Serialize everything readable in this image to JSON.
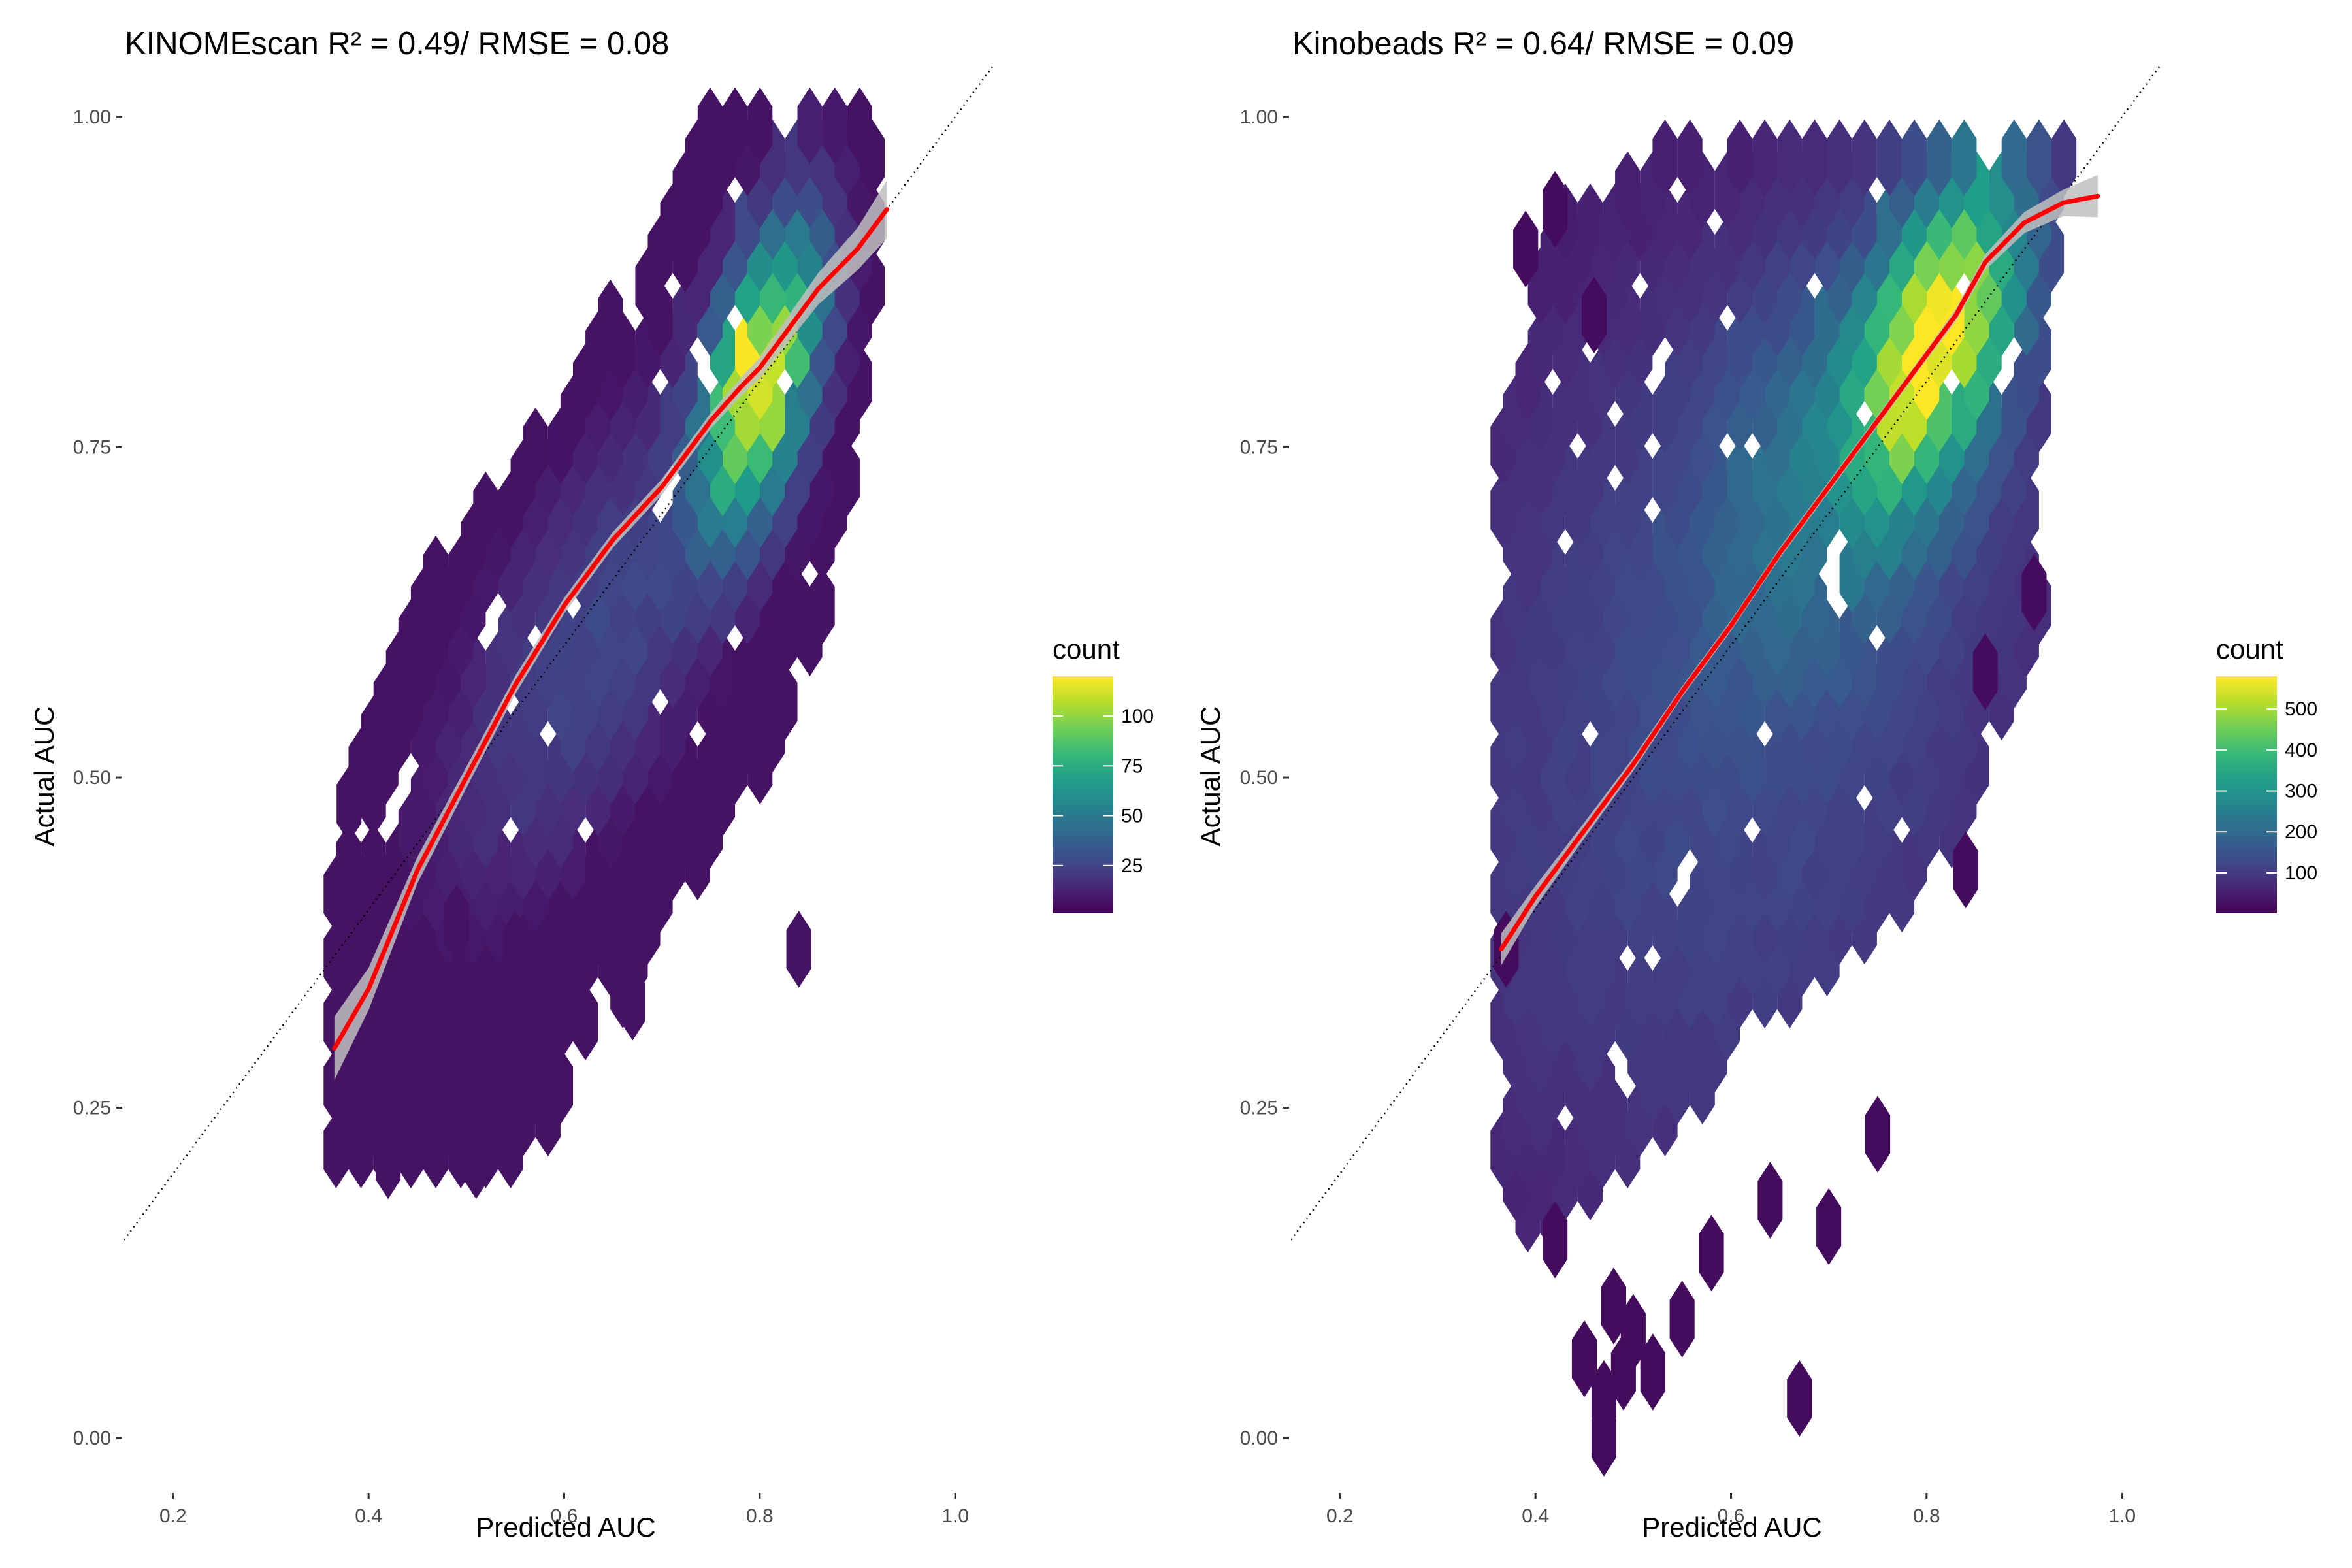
{
  "colors": {
    "viridis": [
      "#440154",
      "#482878",
      "#3e4a89",
      "#31688e",
      "#26828e",
      "#1f9e89",
      "#35b779",
      "#6ece58",
      "#b5de2b",
      "#fde725"
    ],
    "fit_line": "#ff0000",
    "confidence_band": "#bfbfbf",
    "identity_line": "#000000"
  },
  "chart_data": [
    {
      "type": "hexbin",
      "title": "KINOMEscan R² = 0.49/ RMSE = 0.08",
      "xlabel": "Predicted AUC",
      "ylabel": "Actual AUC",
      "xlim": [
        0.15,
        1.05
      ],
      "ylim": [
        -0.04,
        1.04
      ],
      "x_ticks": [
        0.2,
        0.4,
        0.6,
        0.8,
        1.0
      ],
      "x_tick_labels": [
        "0.2",
        "0.4",
        "0.6",
        "0.8",
        "1.0"
      ],
      "y_ticks": [
        0.0,
        0.25,
        0.5,
        0.75,
        1.0
      ],
      "y_tick_labels": [
        "0.00",
        "0.25",
        "0.50",
        "0.75",
        "1.00"
      ],
      "grid": false,
      "identity_line": true,
      "legend": {
        "title": "count",
        "placement": "right",
        "range": [
          1,
          120
        ],
        "ticks": [
          25,
          50,
          75,
          100
        ],
        "tick_labels": [
          "25",
          "50",
          "75",
          "100"
        ]
      },
      "density_clusters": [
        {
          "x": 0.8,
          "y": 0.81,
          "sx": 0.035,
          "sy": 0.065,
          "rho": 0.5,
          "peak": 120
        },
        {
          "x": 0.64,
          "y": 0.62,
          "sx": 0.1,
          "sy": 0.12,
          "rho": 0.7,
          "peak": 10
        }
      ],
      "occupied_region": [
        [
          0.36,
          0.2
        ],
        [
          0.55,
          0.2
        ],
        [
          0.86,
          0.58
        ],
        [
          0.92,
          0.85
        ],
        [
          0.92,
          1.0
        ],
        [
          0.75,
          1.0
        ],
        [
          0.6,
          0.78
        ],
        [
          0.45,
          0.64
        ],
        [
          0.36,
          0.44
        ]
      ],
      "outlier_points": [
        [
          0.42,
          0.21
        ],
        [
          0.51,
          0.21
        ],
        [
          0.67,
          0.33
        ],
        [
          0.84,
          0.37
        ],
        [
          0.55,
          0.37
        ],
        [
          0.49,
          0.39
        ],
        [
          0.38,
          0.48
        ]
      ],
      "fit_line": {
        "x": [
          0.365,
          0.4,
          0.45,
          0.5,
          0.55,
          0.6,
          0.65,
          0.7,
          0.75,
          0.78,
          0.8,
          0.83,
          0.86,
          0.9,
          0.93
        ],
        "y": [
          0.295,
          0.34,
          0.43,
          0.5,
          0.57,
          0.63,
          0.68,
          0.72,
          0.77,
          0.795,
          0.81,
          0.84,
          0.87,
          0.9,
          0.93
        ],
        "band": [
          0.024,
          0.016,
          0.01,
          0.008,
          0.007,
          0.006,
          0.006,
          0.006,
          0.006,
          0.007,
          0.008,
          0.01,
          0.012,
          0.016,
          0.022
        ]
      }
    },
    {
      "type": "hexbin",
      "title": "Kinobeads R² = 0.64/ RMSE = 0.09",
      "xlabel": "Predicted AUC",
      "ylabel": "Actual AUC",
      "xlim": [
        0.15,
        1.05
      ],
      "ylim": [
        -0.04,
        1.04
      ],
      "x_ticks": [
        0.2,
        0.4,
        0.6,
        0.8,
        1.0
      ],
      "x_tick_labels": [
        "0.2",
        "0.4",
        "0.6",
        "0.8",
        "1.0"
      ],
      "y_ticks": [
        0.0,
        0.25,
        0.5,
        0.75,
        1.0
      ],
      "y_tick_labels": [
        "0.00",
        "0.25",
        "0.50",
        "0.75",
        "1.00"
      ],
      "grid": false,
      "identity_line": true,
      "legend": {
        "title": "count",
        "placement": "right",
        "range": [
          1,
          580
        ],
        "ticks": [
          100,
          200,
          300,
          400,
          500
        ],
        "tick_labels": [
          "100",
          "200",
          "300",
          "400",
          "500"
        ]
      },
      "density_clusters": [
        {
          "x": 0.81,
          "y": 0.84,
          "sx": 0.05,
          "sy": 0.07,
          "rho": 0.5,
          "peak": 580
        },
        {
          "x": 0.72,
          "y": 0.75,
          "sx": 0.09,
          "sy": 0.1,
          "rho": 0.4,
          "peak": 120
        },
        {
          "x": 0.6,
          "y": 0.55,
          "sx": 0.2,
          "sy": 0.22,
          "rho": 0.2,
          "peak": 40
        }
      ],
      "occupied_region": [
        [
          0.36,
          0.22
        ],
        [
          0.4,
          0.15
        ],
        [
          0.65,
          0.32
        ],
        [
          0.85,
          0.46
        ],
        [
          0.92,
          0.6
        ],
        [
          0.92,
          0.86
        ],
        [
          0.96,
          0.98
        ],
        [
          0.55,
          0.98
        ],
        [
          0.42,
          0.92
        ],
        [
          0.36,
          0.75
        ]
      ],
      "outlier_points": [
        [
          0.42,
          0.15
        ],
        [
          0.48,
          0.1
        ],
        [
          0.5,
          0.08
        ],
        [
          0.45,
          0.06
        ],
        [
          0.47,
          0.03
        ],
        [
          0.49,
          0.05
        ],
        [
          0.52,
          0.05
        ],
        [
          0.47,
          0.0
        ],
        [
          0.55,
          0.09
        ],
        [
          0.58,
          0.14
        ],
        [
          0.67,
          0.03
        ],
        [
          0.64,
          0.18
        ],
        [
          0.7,
          0.16
        ],
        [
          0.75,
          0.23
        ],
        [
          0.84,
          0.43
        ],
        [
          0.91,
          0.64
        ],
        [
          0.86,
          0.58
        ],
        [
          0.37,
          0.37
        ],
        [
          0.46,
          0.85
        ],
        [
          0.42,
          0.93
        ],
        [
          0.39,
          0.9
        ]
      ],
      "fit_line": {
        "x": [
          0.365,
          0.4,
          0.45,
          0.5,
          0.55,
          0.6,
          0.65,
          0.7,
          0.75,
          0.8,
          0.83,
          0.86,
          0.9,
          0.94,
          0.975
        ],
        "y": [
          0.37,
          0.41,
          0.46,
          0.51,
          0.565,
          0.615,
          0.67,
          0.72,
          0.77,
          0.82,
          0.85,
          0.89,
          0.92,
          0.935,
          0.94
        ],
        "band": [
          0.012,
          0.008,
          0.006,
          0.005,
          0.004,
          0.004,
          0.004,
          0.004,
          0.004,
          0.004,
          0.005,
          0.006,
          0.008,
          0.01,
          0.016
        ]
      }
    }
  ]
}
